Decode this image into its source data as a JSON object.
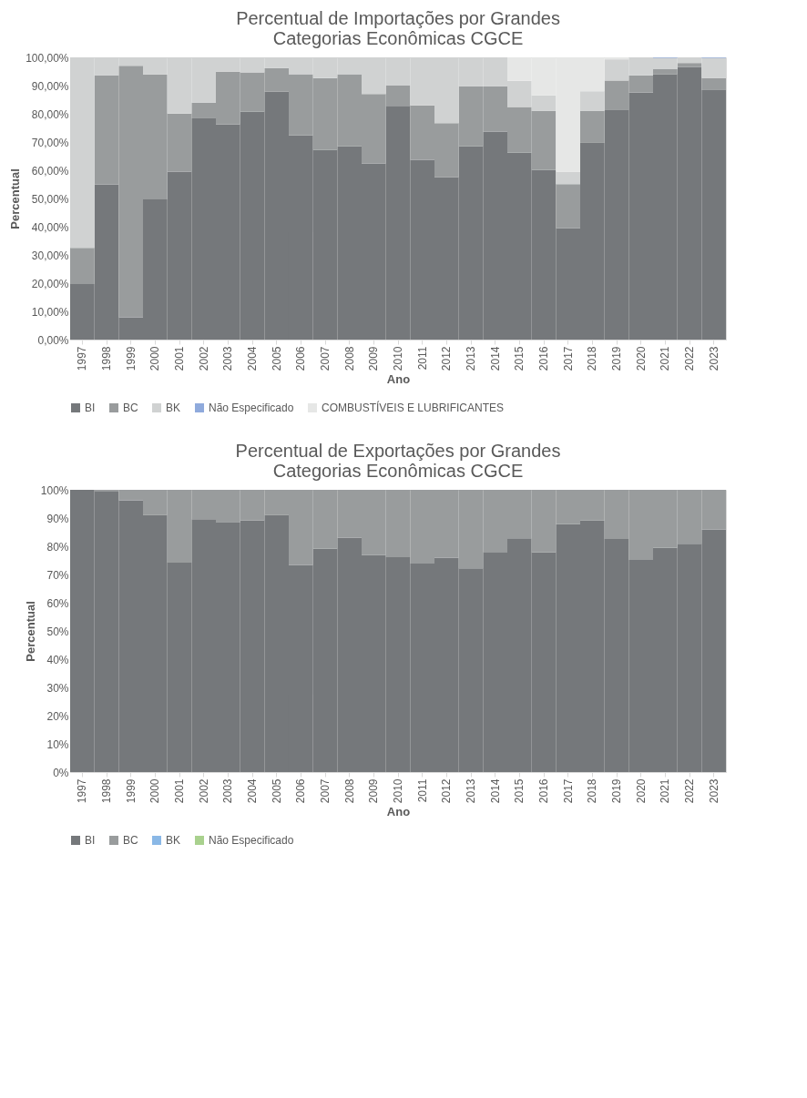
{
  "chart_data": [
    {
      "type": "bar",
      "stacked": true,
      "title": "Percentual de Importações por Grandes Categorias Econômicas CGCE",
      "xlabel": "Ano",
      "ylabel": "Percentual",
      "legend": "bottom",
      "grid": false,
      "categories": [
        "1997",
        "1998",
        "1999",
        "2000",
        "2001",
        "2002",
        "2003",
        "2004",
        "2005",
        "2006",
        "2007",
        "2008",
        "2009",
        "2010",
        "2011",
        "2012",
        "2013",
        "2014",
        "2015",
        "2016",
        "2017",
        "2018",
        "2019",
        "2020",
        "2021",
        "2022",
        "2023"
      ],
      "ylim": [
        0,
        100
      ],
      "yticks": [
        {
          "value": 0,
          "label": "0,00%"
        },
        {
          "value": 10,
          "label": "10,00%"
        },
        {
          "value": 20,
          "label": "20,00%"
        },
        {
          "value": 30,
          "label": "30,00%"
        },
        {
          "value": 40,
          "label": "40,00%"
        },
        {
          "value": 50,
          "label": "50,00%"
        },
        {
          "value": 60,
          "label": "60,00%"
        },
        {
          "value": 70,
          "label": "70,00%"
        },
        {
          "value": 80,
          "label": "80,00%"
        },
        {
          "value": 90,
          "label": "90,00%"
        },
        {
          "value": 100,
          "label": "100,00%"
        }
      ],
      "series": [
        {
          "name": "BI",
          "color": "#75787b",
          "values": [
            19.7,
            55.0,
            7.9,
            49.7,
            59.5,
            78.4,
            76.3,
            80.7,
            87.9,
            72.3,
            67.2,
            68.5,
            62.4,
            82.8,
            63.7,
            57.6,
            68.5,
            73.7,
            66.2,
            60.1,
            39.5,
            69.7,
            81.3,
            87.6,
            94.0,
            96.6,
            88.4
          ]
        },
        {
          "name": "BC",
          "color": "#999c9d",
          "values": [
            12.8,
            38.6,
            89.1,
            44.2,
            20.6,
            5.6,
            18.6,
            14.0,
            8.3,
            21.7,
            25.5,
            25.5,
            24.6,
            7.2,
            19.3,
            19.1,
            21.2,
            16.0,
            16.2,
            20.9,
            15.6,
            11.3,
            10.5,
            6.0,
            1.8,
            1.4,
            4.3
          ]
        },
        {
          "name": "BK",
          "color": "#d0d2d2",
          "values": [
            67.5,
            6.4,
            3.0,
            6.1,
            19.9,
            16.0,
            5.1,
            5.3,
            3.8,
            6.0,
            7.3,
            6.0,
            13.0,
            10.0,
            17.0,
            23.3,
            10.3,
            10.3,
            9.3,
            5.5,
            4.4,
            7.0,
            7.5,
            6.4,
            4.0,
            2.0,
            7.1
          ]
        },
        {
          "name": "Não Especificado",
          "color": "#8faadc",
          "values": [
            null,
            null,
            null,
            null,
            null,
            null,
            null,
            null,
            null,
            null,
            null,
            null,
            null,
            null,
            null,
            null,
            null,
            null,
            null,
            null,
            null,
            null,
            null,
            null,
            0.2,
            null,
            0.2
          ]
        },
        {
          "name": "COMBUSTÍVEIS E LUBRIFICANTES",
          "color": "#e6e7e6",
          "values": [
            null,
            null,
            null,
            null,
            null,
            null,
            null,
            null,
            null,
            null,
            null,
            null,
            null,
            null,
            null,
            null,
            null,
            null,
            8.3,
            13.5,
            40.5,
            12.0,
            0.7,
            null,
            null,
            null,
            null
          ]
        }
      ]
    },
    {
      "type": "bar",
      "stacked": true,
      "title": "Percentual de Exportações por Grandes Categorias Econômicas CGCE",
      "xlabel": "Ano",
      "ylabel": "Percentual",
      "legend": "bottom",
      "grid": false,
      "categories": [
        "1997",
        "1998",
        "1999",
        "2000",
        "2001",
        "2002",
        "2003",
        "2004",
        "2005",
        "2006",
        "2007",
        "2008",
        "2009",
        "2010",
        "2011",
        "2012",
        "2013",
        "2014",
        "2015",
        "2016",
        "2017",
        "2018",
        "2019",
        "2020",
        "2021",
        "2022",
        "2023"
      ],
      "ylim": [
        0,
        100
      ],
      "yticks": [
        {
          "value": 0,
          "label": "0%"
        },
        {
          "value": 10,
          "label": "10%"
        },
        {
          "value": 20,
          "label": "20%"
        },
        {
          "value": 30,
          "label": "30%"
        },
        {
          "value": 40,
          "label": "40%"
        },
        {
          "value": 50,
          "label": "50%"
        },
        {
          "value": 60,
          "label": "60%"
        },
        {
          "value": 70,
          "label": "70%"
        },
        {
          "value": 80,
          "label": "80%"
        },
        {
          "value": 90,
          "label": "90%"
        },
        {
          "value": 100,
          "label": "100%"
        }
      ],
      "series": [
        {
          "name": "BI",
          "color": "#75787b",
          "values": [
            100.0,
            99.6,
            96.3,
            91.1,
            74.2,
            89.6,
            88.4,
            89.2,
            91.1,
            73.4,
            79.1,
            83.1,
            76.9,
            76.1,
            73.9,
            76.0,
            72.2,
            78.0,
            82.8,
            77.8,
            87.8,
            89.1,
            82.6,
            75.2,
            79.4,
            80.9,
            86.0
          ]
        },
        {
          "name": "BC",
          "color": "#999c9d",
          "values": [
            0.0,
            0.4,
            3.7,
            8.9,
            25.8,
            10.4,
            11.6,
            10.8,
            8.9,
            26.6,
            20.9,
            16.9,
            23.1,
            23.9,
            26.1,
            24.0,
            27.8,
            22.0,
            17.2,
            22.2,
            12.2,
            10.9,
            17.4,
            24.8,
            20.6,
            19.1,
            14.0
          ]
        },
        {
          "name": "BK",
          "color": "#8ab8e6",
          "values": [
            null,
            null,
            null,
            null,
            null,
            null,
            null,
            null,
            null,
            null,
            null,
            null,
            null,
            null,
            null,
            null,
            null,
            null,
            null,
            null,
            null,
            null,
            null,
            null,
            null,
            null,
            null
          ]
        },
        {
          "name": "Não Especificado",
          "color": "#a9d18e",
          "values": [
            null,
            null,
            null,
            null,
            null,
            null,
            null,
            null,
            null,
            null,
            null,
            null,
            null,
            null,
            null,
            null,
            null,
            null,
            null,
            null,
            null,
            null,
            null,
            null,
            null,
            null,
            null
          ]
        }
      ]
    }
  ]
}
